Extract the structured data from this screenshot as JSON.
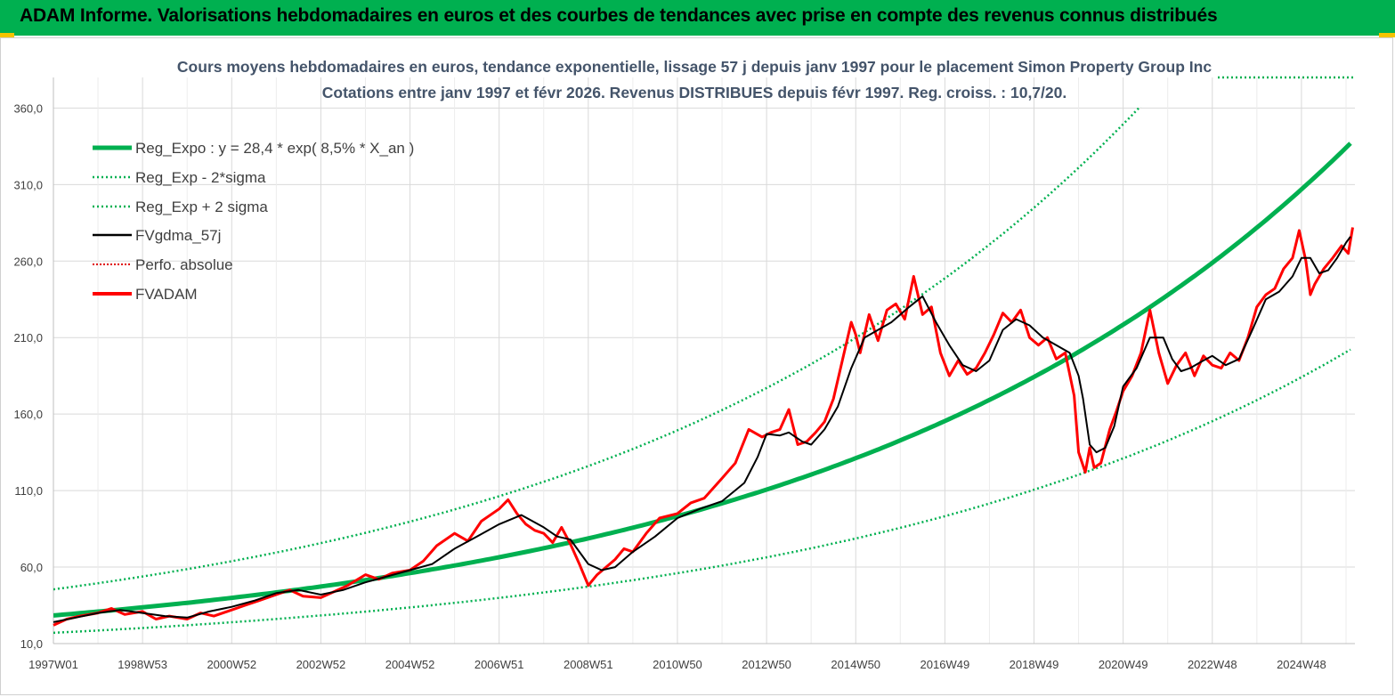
{
  "header": {
    "title": "ADAM Informe. Valorisations hebdomadaires en euros et des courbes de tendances avec prise en compte des revenus connus distribués"
  },
  "chart_data": {
    "type": "line",
    "title": "Cours moyens hebdomadaires en euros, tendance exponentielle, lissage 57 j depuis janv 1997  pour le placement Simon Property Group Inc",
    "subtitle": "Cotations entre janv 1997 et févr 2026. Revenus DISTRIBUES depuis févr 1997. Reg. croiss. : 10,7/20.",
    "xlabel": "",
    "ylabel": "",
    "ylim": [
      10,
      380
    ],
    "xlim": [
      1997.0,
      2026.2
    ],
    "y_ticks": [
      10,
      60,
      110,
      160,
      210,
      260,
      310,
      360
    ],
    "y_tick_labels": [
      "10,0",
      "60,0",
      "110,0",
      "160,0",
      "210,0",
      "260,0",
      "310,0",
      "360,0"
    ],
    "x_ticks": [
      1997.0,
      1999.0,
      2001.0,
      2003.0,
      2005.0,
      2007.0,
      2009.0,
      2011.0,
      2013.0,
      2015.0,
      2017.0,
      2019.0,
      2021.0,
      2023.0,
      2025.0
    ],
    "x_tick_labels": [
      "1997W01",
      "1998W53",
      "2000W52",
      "2002W52",
      "2004W52",
      "2006W51",
      "2008W51",
      "2010W50",
      "2012W50",
      "2014W50",
      "2016W49",
      "2018W49",
      "2020W49",
      "2022W48",
      "2024W48"
    ],
    "grid": true,
    "legend_position": "top-left",
    "regression": {
      "a": 28.4,
      "rate": 0.085,
      "sigma_factor_up": 1.6,
      "sigma_factor_down": 0.6
    },
    "series": [
      {
        "name": "Reg_Expo : y = 28,4 * exp( 8,5% *  X_an )",
        "color": "#00b050",
        "style": "solid-thick"
      },
      {
        "name": "Reg_Exp - 2*sigma",
        "color": "#00b050",
        "style": "dotted"
      },
      {
        "name": "Reg_Exp + 2 sigma",
        "color": "#00b050",
        "style": "dotted"
      },
      {
        "name": "FVgdma_57j",
        "color": "#000000",
        "style": "solid",
        "x": [
          1997.0,
          1997.5,
          1998.0,
          1998.5,
          1999.0,
          1999.5,
          2000.0,
          2000.5,
          2001.0,
          2001.5,
          2002.0,
          2002.5,
          2003.0,
          2003.5,
          2004.0,
          2004.5,
          2005.0,
          2005.5,
          2006.0,
          2006.5,
          2007.0,
          2007.5,
          2008.0,
          2008.3,
          2008.6,
          2009.0,
          2009.3,
          2009.6,
          2010.0,
          2010.5,
          2011.0,
          2011.5,
          2012.0,
          2012.5,
          2012.8,
          2013.0,
          2013.3,
          2013.5,
          2013.8,
          2014.0,
          2014.3,
          2014.6,
          2014.9,
          2015.2,
          2015.5,
          2015.8,
          2016.2,
          2016.5,
          2016.8,
          2017.1,
          2017.4,
          2017.7,
          2018.0,
          2018.3,
          2018.6,
          2018.9,
          2019.2,
          2019.5,
          2019.8,
          2020.0,
          2020.1,
          2020.25,
          2020.4,
          2020.6,
          2020.8,
          2021.0,
          2021.3,
          2021.6,
          2021.9,
          2022.1,
          2022.3,
          2022.5,
          2022.8,
          2023.0,
          2023.3,
          2023.6,
          2023.9,
          2024.2,
          2024.5,
          2024.8,
          2025.0,
          2025.2,
          2025.4,
          2025.6,
          2025.8,
          2026.0,
          2026.1
        ],
        "values": [
          24,
          27,
          30,
          32,
          30,
          28,
          27,
          31,
          34,
          38,
          43,
          45,
          42,
          45,
          50,
          54,
          58,
          62,
          72,
          80,
          88,
          94,
          86,
          80,
          78,
          62,
          58,
          60,
          70,
          80,
          92,
          98,
          103,
          115,
          132,
          147,
          146,
          148,
          142,
          140,
          150,
          165,
          190,
          210,
          215,
          220,
          230,
          237,
          220,
          205,
          192,
          188,
          195,
          215,
          222,
          218,
          210,
          205,
          200,
          185,
          170,
          140,
          135,
          138,
          152,
          178,
          190,
          210,
          210,
          196,
          188,
          190,
          195,
          198,
          192,
          196,
          215,
          235,
          240,
          250,
          262,
          262,
          252,
          254,
          262,
          272,
          276
        ]
      },
      {
        "name": "Perfo. absolue",
        "color": "#e00000",
        "style": "dotted"
      },
      {
        "name": "FVADAM",
        "color": "#ff0000",
        "style": "solid-thick",
        "x": [
          1997.0,
          1997.3,
          1997.6,
          1998.0,
          1998.3,
          1998.6,
          1999.0,
          1999.3,
          1999.6,
          2000.0,
          2000.3,
          2000.6,
          2001.0,
          2001.3,
          2001.6,
          2002.0,
          2002.3,
          2002.6,
          2003.0,
          2003.3,
          2003.6,
          2004.0,
          2004.3,
          2004.6,
          2005.0,
          2005.3,
          2005.6,
          2006.0,
          2006.3,
          2006.6,
          2007.0,
          2007.2,
          2007.4,
          2007.6,
          2007.8,
          2008.0,
          2008.2,
          2008.4,
          2008.6,
          2008.8,
          2009.0,
          2009.2,
          2009.4,
          2009.6,
          2009.8,
          2010.0,
          2010.3,
          2010.6,
          2011.0,
          2011.3,
          2011.6,
          2012.0,
          2012.3,
          2012.6,
          2012.9,
          2013.1,
          2013.3,
          2013.5,
          2013.7,
          2013.9,
          2014.1,
          2014.3,
          2014.5,
          2014.7,
          2014.9,
          2015.0,
          2015.1,
          2015.3,
          2015.5,
          2015.7,
          2015.9,
          2016.1,
          2016.3,
          2016.5,
          2016.7,
          2016.9,
          2017.1,
          2017.3,
          2017.5,
          2017.7,
          2017.9,
          2018.1,
          2018.3,
          2018.5,
          2018.7,
          2018.9,
          2019.1,
          2019.3,
          2019.5,
          2019.7,
          2019.9,
          2020.0,
          2020.15,
          2020.25,
          2020.35,
          2020.5,
          2020.7,
          2020.85,
          2021.0,
          2021.2,
          2021.4,
          2021.6,
          2021.8,
          2022.0,
          2022.2,
          2022.4,
          2022.6,
          2022.8,
          2023.0,
          2023.2,
          2023.4,
          2023.6,
          2023.8,
          2024.0,
          2024.2,
          2024.4,
          2024.6,
          2024.8,
          2024.95,
          2025.1,
          2025.2,
          2025.3,
          2025.5,
          2025.7,
          2025.9,
          2026.05,
          2026.15
        ],
        "values": [
          22,
          26,
          28,
          30,
          33,
          29,
          31,
          26,
          28,
          26,
          30,
          28,
          32,
          35,
          38,
          42,
          45,
          41,
          40,
          44,
          48,
          55,
          52,
          56,
          58,
          64,
          74,
          82,
          77,
          90,
          98,
          104,
          95,
          88,
          84,
          82,
          76,
          86,
          75,
          62,
          48,
          55,
          60,
          65,
          72,
          70,
          82,
          92,
          95,
          102,
          105,
          118,
          128,
          150,
          145,
          148,
          150,
          163,
          140,
          142,
          148,
          155,
          170,
          195,
          220,
          212,
          200,
          225,
          208,
          228,
          232,
          222,
          250,
          225,
          230,
          200,
          185,
          195,
          186,
          190,
          200,
          212,
          226,
          220,
          228,
          210,
          205,
          210,
          196,
          200,
          172,
          135,
          122,
          138,
          125,
          128,
          150,
          162,
          175,
          185,
          200,
          228,
          200,
          180,
          192,
          200,
          185,
          198,
          192,
          190,
          200,
          195,
          210,
          230,
          238,
          242,
          255,
          262,
          280,
          260,
          238,
          245,
          255,
          262,
          270,
          265,
          282
        ]
      }
    ]
  }
}
